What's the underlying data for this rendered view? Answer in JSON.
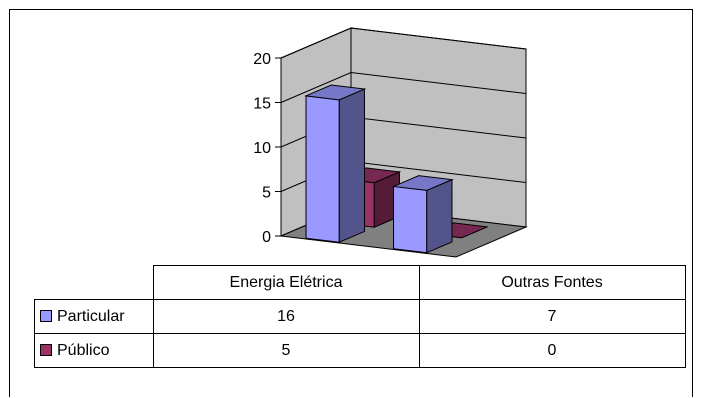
{
  "chart_data": {
    "type": "bar",
    "style": "3d",
    "title": "",
    "categories": [
      "Energia Elétrica",
      "Outras Fontes"
    ],
    "series": [
      {
        "name": "Particular",
        "values": [
          16,
          7
        ],
        "color": "#9999ff"
      },
      {
        "name": "Público",
        "values": [
          5,
          0
        ],
        "color": "#993366"
      }
    ],
    "ylim": [
      0,
      20
    ],
    "yticks": [
      "0",
      "5",
      "10",
      "15",
      "20"
    ],
    "grid": true,
    "legend": "data-table"
  },
  "colors": {
    "wall": "#c0c0c0",
    "floor": "#808080",
    "gridline": "#000000"
  }
}
